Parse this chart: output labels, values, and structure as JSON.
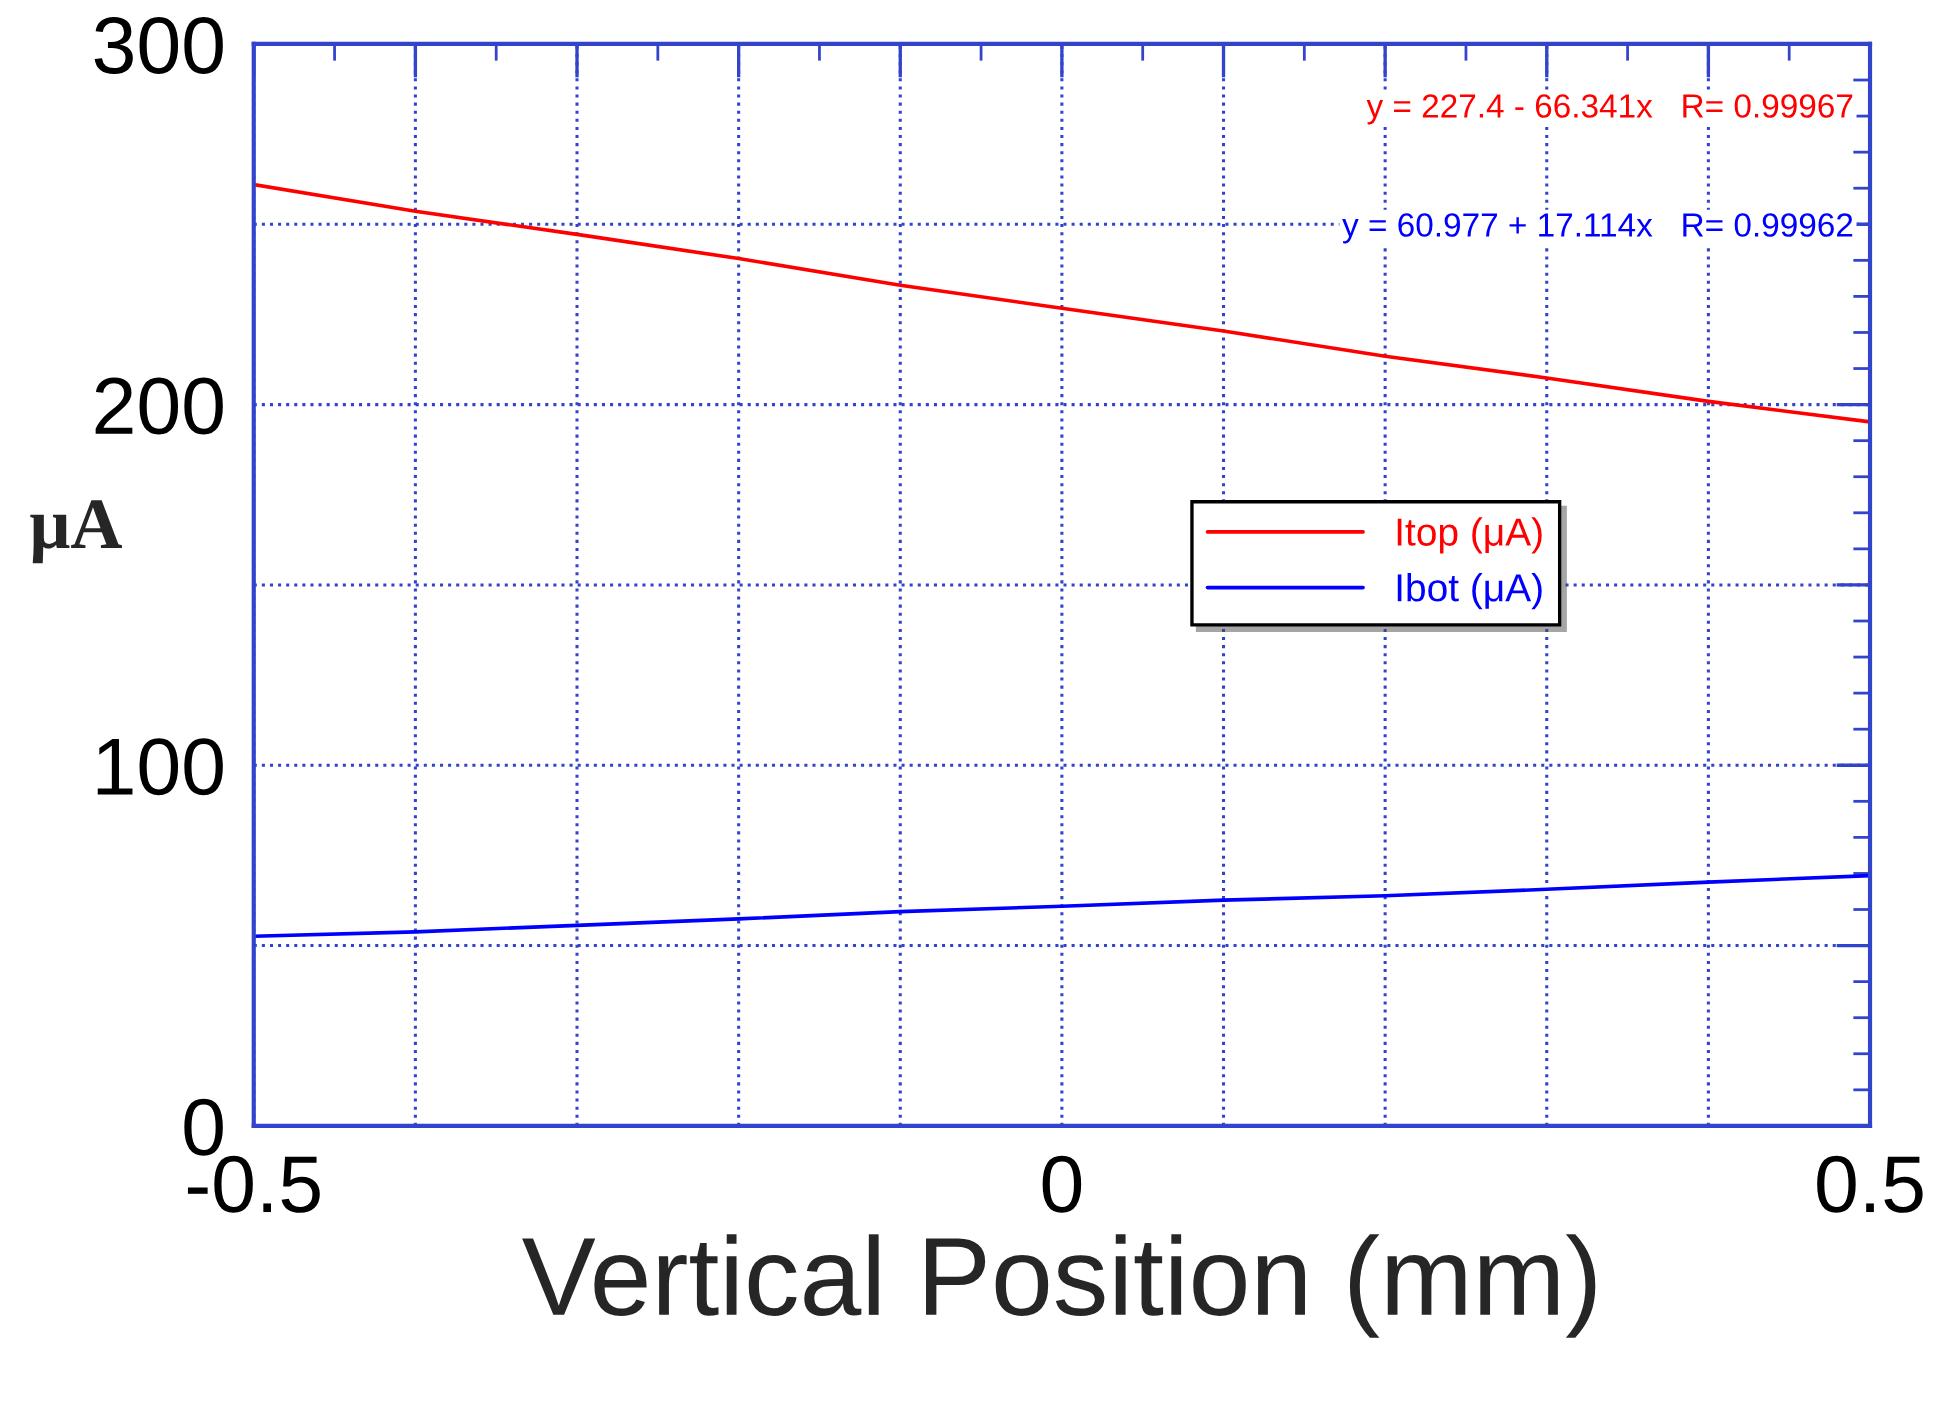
{
  "chart_data": {
    "type": "line",
    "xlabel": "Vertical Position (mm)",
    "ylabel": "μA",
    "x": [
      -0.5,
      -0.4,
      -0.3,
      -0.2,
      -0.1,
      0,
      0.1,
      0.2,
      0.3,
      0.4,
      0.5
    ],
    "series": [
      {
        "name": "Itop (μA)",
        "color": "#ff0000",
        "values": [
          261,
          253.6,
          247.2,
          240.5,
          233.1,
          226.7,
          220.4,
          213.4,
          207.4,
          200.9,
          195.2
        ]
      },
      {
        "name": "Ibot (μA)",
        "color": "#0000ff",
        "values": [
          52.6,
          53.8,
          55.6,
          57.4,
          59.4,
          60.9,
          62.6,
          63.8,
          65.6,
          67.6,
          69.4
        ]
      }
    ],
    "annotations": [
      "y = 227.4 - 66.341x   R= 0.99967",
      "y = 60.977 + 17.114x   R= 0.99962"
    ],
    "xlim": [
      -0.5,
      0.5
    ],
    "ylim": [
      0,
      300
    ],
    "xticks": [
      -0.5,
      {
        "value": -0.4,
        "label": null
      },
      {
        "value": -0.3,
        "label": null
      },
      {
        "value": -0.2,
        "label": null
      },
      {
        "value": -0.1,
        "label": null
      },
      0,
      {
        "value": 0.1,
        "label": null
      },
      {
        "value": 0.2,
        "label": null
      },
      {
        "value": 0.3,
        "label": null
      },
      {
        "value": 0.4,
        "label": null
      },
      0.5
    ],
    "yticks": [
      0,
      {
        "value": 50,
        "label": null
      },
      100,
      {
        "value": 150,
        "label": null
      },
      200,
      {
        "value": 250,
        "label": null
      },
      300
    ],
    "grid": true,
    "legend": "right",
    "line_style": "solid",
    "marker": "none"
  }
}
